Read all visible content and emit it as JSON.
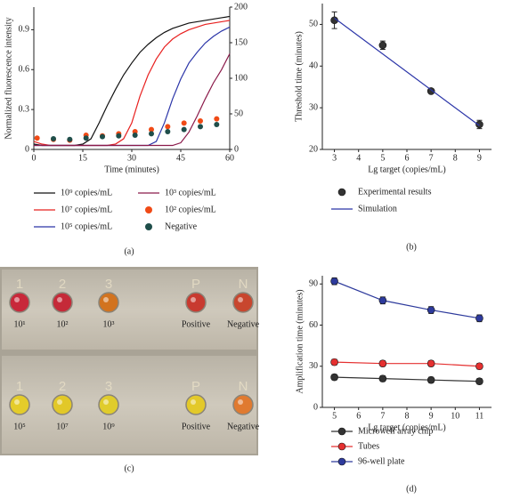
{
  "chart_data": [
    {
      "type": "line",
      "ylabel": "Normalized fluorescence intensity",
      "xlabel": "Time (minutes)",
      "xlim": [
        0,
        60
      ],
      "xticks": [
        0,
        15,
        30,
        45,
        60
      ],
      "ylim": [
        0,
        1.07
      ],
      "yticks": [
        0,
        0.3,
        0.6,
        0.9
      ],
      "y2lim": [
        0,
        200
      ],
      "y2ticks": [
        0,
        50,
        100,
        150,
        200
      ],
      "series": [
        {
          "name": "10⁹ copies/mL",
          "color": "#111111",
          "type": "line",
          "x": [
            0,
            2.5,
            5,
            7.5,
            10,
            12.5,
            15,
            17.5,
            20,
            22.5,
            25,
            27.5,
            30,
            32.5,
            35,
            37.5,
            40,
            42.5,
            45,
            47.5,
            50,
            52.5,
            55,
            57.5,
            60
          ],
          "values": [
            0.04,
            0.03,
            0.03,
            0.03,
            0.03,
            0.03,
            0.04,
            0.08,
            0.2,
            0.33,
            0.45,
            0.56,
            0.65,
            0.73,
            0.79,
            0.84,
            0.88,
            0.91,
            0.93,
            0.95,
            0.96,
            0.97,
            0.98,
            0.99,
            1.0
          ]
        },
        {
          "name": "10⁷ copies/mL",
          "color": "#e8201f",
          "type": "line",
          "x": [
            0,
            2.5,
            5,
            7.5,
            10,
            12.5,
            15,
            17.5,
            20,
            22.5,
            25,
            27.5,
            30,
            32.5,
            35,
            37.5,
            40,
            42.5,
            45,
            47.5,
            50,
            52.5,
            55,
            57.5,
            60
          ],
          "values": [
            0.06,
            0.04,
            0.03,
            0.03,
            0.03,
            0.03,
            0.03,
            0.03,
            0.03,
            0.03,
            0.04,
            0.08,
            0.2,
            0.4,
            0.56,
            0.68,
            0.77,
            0.83,
            0.87,
            0.9,
            0.92,
            0.94,
            0.95,
            0.96,
            0.97
          ]
        },
        {
          "name": "10⁵ copies/mL",
          "color": "#2b35a8",
          "type": "line",
          "x": [
            0,
            2.5,
            5,
            7.5,
            10,
            12.5,
            15,
            17.5,
            20,
            22.5,
            25,
            27.5,
            30,
            32.5,
            35,
            37.5,
            40,
            42.5,
            45,
            47.5,
            50,
            52.5,
            55,
            57.5,
            60
          ],
          "values": [
            0.03,
            0.03,
            0.03,
            0.03,
            0.03,
            0.03,
            0.03,
            0.03,
            0.03,
            0.03,
            0.03,
            0.03,
            0.03,
            0.03,
            0.03,
            0.06,
            0.2,
            0.38,
            0.53,
            0.65,
            0.73,
            0.8,
            0.85,
            0.89,
            0.92
          ]
        },
        {
          "name": "10³ copies/mL",
          "color": "#8b1a4a",
          "type": "line",
          "x": [
            0,
            2.5,
            5,
            7.5,
            10,
            12.5,
            15,
            17.5,
            20,
            22.5,
            25,
            27.5,
            30,
            32.5,
            35,
            37.5,
            40,
            42.5,
            45,
            47.5,
            50,
            52.5,
            55,
            57.5,
            60
          ],
          "values": [
            0.03,
            0.03,
            0.03,
            0.03,
            0.03,
            0.03,
            0.03,
            0.03,
            0.03,
            0.03,
            0.03,
            0.03,
            0.03,
            0.03,
            0.03,
            0.03,
            0.03,
            0.03,
            0.05,
            0.13,
            0.25,
            0.38,
            0.5,
            0.6,
            0.72
          ]
        },
        {
          "name": "10² copies/mL",
          "color": "#f04a16",
          "type": "scatter",
          "axis": "y2",
          "x": [
            1,
            6,
            11,
            16,
            21,
            26,
            31,
            36,
            41,
            46,
            51,
            56
          ],
          "values": [
            16,
            14,
            13,
            20,
            19,
            22,
            25,
            28,
            32,
            37,
            40,
            43
          ]
        },
        {
          "name": "Negative",
          "color": "#1f4e4a",
          "type": "scatter",
          "axis": "y2",
          "x": [
            6,
            11,
            16,
            21,
            26,
            31,
            36,
            41,
            46,
            51,
            56
          ],
          "values": [
            15,
            14,
            16,
            18,
            19,
            20,
            22,
            25,
            28,
            32,
            35
          ]
        }
      ]
    },
    {
      "type": "scatter",
      "ylabel": "Threshold time (minutes)",
      "xlabel": "Lg target (copies/mL)",
      "xlim": [
        2.5,
        9.5
      ],
      "xticks": [
        3,
        4,
        5,
        6,
        7,
        8,
        9
      ],
      "ylim": [
        20,
        55
      ],
      "yticks": [
        20,
        30,
        40,
        50
      ],
      "series": [
        {
          "name": "Experimental results",
          "color": "#333333",
          "type": "scatter",
          "x": [
            3,
            5,
            7,
            9
          ],
          "values": [
            51,
            45,
            34,
            26
          ],
          "errors": [
            2,
            1,
            0.5,
            1
          ]
        },
        {
          "name": "Simulation",
          "color": "#2b35a8",
          "type": "line",
          "x": [
            3,
            9
          ],
          "values": [
            51.5,
            25.7
          ]
        }
      ]
    },
    {
      "type": "line",
      "ylabel": "Amplification time (minutes)",
      "xlabel": "Lg target (copies/mL)",
      "xlim": [
        4.5,
        11.5
      ],
      "xticks": [
        5,
        6,
        7,
        8,
        9,
        10,
        11
      ],
      "ylim": [
        0,
        96
      ],
      "yticks": [
        0,
        30,
        60,
        90
      ],
      "series": [
        {
          "name": "Microwell array chip",
          "color": "#333333",
          "type": "line",
          "markers": true,
          "x": [
            5,
            7,
            9,
            11
          ],
          "values": [
            22,
            21,
            20,
            19
          ],
          "errors": [
            2,
            2,
            2,
            2
          ]
        },
        {
          "name": "Tubes",
          "color": "#e53030",
          "type": "line",
          "markers": true,
          "x": [
            5,
            7,
            9,
            11
          ],
          "values": [
            33,
            32,
            32,
            30
          ],
          "errors": [
            2,
            2,
            2,
            2
          ]
        },
        {
          "name": "96-well plate",
          "color": "#2d3a9c",
          "type": "line",
          "markers": true,
          "x": [
            5,
            7,
            9,
            11
          ],
          "values": [
            92,
            78,
            71,
            65
          ],
          "errors": [
            2.5,
            2.5,
            2.5,
            2.5
          ]
        }
      ]
    }
  ],
  "photo": {
    "rows": [
      {
        "numbers": [
          "1",
          "2",
          "3",
          "P",
          "N"
        ],
        "labels": [
          "10¹",
          "10²",
          "10³",
          "Positive",
          "Negative"
        ],
        "well_colors": [
          "#c8283a",
          "#c52a38",
          "#d2731f",
          "#c83a30",
          "#c8462e"
        ]
      },
      {
        "numbers": [
          "1",
          "2",
          "3",
          "P",
          "N"
        ],
        "labels": [
          "10⁵",
          "10⁷",
          "10⁹",
          "Positive",
          "Negative"
        ],
        "well_colors": [
          "#e4cc2a",
          "#e2c828",
          "#e0cc2c",
          "#e3c92a",
          "#e07a30"
        ]
      }
    ]
  },
  "panel_labels": [
    "(a)",
    "(b)",
    "(c)",
    "(d)"
  ]
}
